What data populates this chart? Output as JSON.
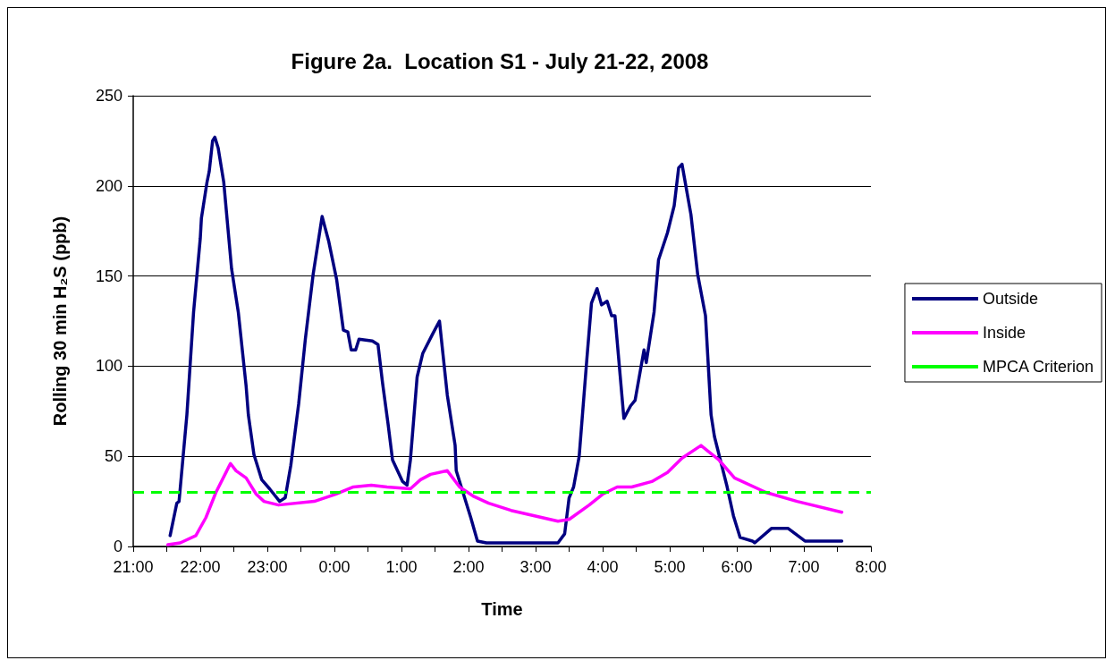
{
  "chart_data": {
    "type": "line",
    "title": "Figure 2a.  Location S1 - July 21-22, 2008",
    "xlabel": "Time",
    "ylabel": "Rolling 30 min H₂S (ppb)",
    "xlim": [
      "2008-07-21T21:00",
      "2008-07-22T08:00"
    ],
    "xticks": [
      {
        "value": "2008-07-21T21:00",
        "label": "21:00"
      },
      {
        "value": "2008-07-21T21:30",
        "label": null
      },
      {
        "value": "2008-07-21T22:00",
        "label": "22:00"
      },
      {
        "value": "2008-07-21T22:30",
        "label": null
      },
      {
        "value": "2008-07-21T23:00",
        "label": "23:00"
      },
      {
        "value": "2008-07-21T23:30",
        "label": null
      },
      {
        "value": "2008-07-22T00:00",
        "label": "0:00"
      },
      {
        "value": "2008-07-22T00:30",
        "label": null
      },
      {
        "value": "2008-07-22T01:00",
        "label": "1:00"
      },
      {
        "value": "2008-07-22T01:30",
        "label": null
      },
      {
        "value": "2008-07-22T02:00",
        "label": "2:00"
      },
      {
        "value": "2008-07-22T02:30",
        "label": null
      },
      {
        "value": "2008-07-22T03:00",
        "label": "3:00"
      },
      {
        "value": "2008-07-22T03:30",
        "label": null
      },
      {
        "value": "2008-07-22T04:00",
        "label": "4:00"
      },
      {
        "value": "2008-07-22T04:30",
        "label": null
      },
      {
        "value": "2008-07-22T05:00",
        "label": "5:00"
      },
      {
        "value": "2008-07-22T05:30",
        "label": null
      },
      {
        "value": "2008-07-22T06:00",
        "label": "6:00"
      },
      {
        "value": "2008-07-22T06:30",
        "label": null
      },
      {
        "value": "2008-07-22T07:00",
        "label": "7:00"
      },
      {
        "value": "2008-07-22T07:30",
        "label": null
      },
      {
        "value": "2008-07-22T08:00",
        "label": "8:00"
      }
    ],
    "ylim": [
      0,
      250
    ],
    "yticks": [
      0,
      50,
      100,
      150,
      200,
      250
    ],
    "grid": "y",
    "legend": "right",
    "marker": "none",
    "line_style": "solid",
    "series": [
      {
        "name": "Outside",
        "color": "#000080",
        "x": [
          "2008-07-21T21:33",
          "2008-07-21T21:39",
          "2008-07-21T21:41",
          "2008-07-21T21:48",
          "2008-07-21T21:54",
          "2008-07-21T22:00",
          "2008-07-21T22:01",
          "2008-07-21T22:06",
          "2008-07-21T22:08",
          "2008-07-21T22:11",
          "2008-07-21T22:13",
          "2008-07-21T22:16",
          "2008-07-21T22:21",
          "2008-07-21T22:28",
          "2008-07-21T22:34",
          "2008-07-21T22:41",
          "2008-07-21T22:43",
          "2008-07-21T22:48",
          "2008-07-21T22:55",
          "2008-07-21T23:02",
          "2008-07-21T23:11",
          "2008-07-21T23:16",
          "2008-07-21T23:21",
          "2008-07-21T23:28",
          "2008-07-21T23:34",
          "2008-07-21T23:41",
          "2008-07-21T23:49",
          "2008-07-21T23:55",
          "2008-07-22T00:02",
          "2008-07-22T00:08",
          "2008-07-22T00:12",
          "2008-07-22T00:15",
          "2008-07-22T00:19",
          "2008-07-22T00:22",
          "2008-07-22T00:34",
          "2008-07-22T00:39",
          "2008-07-22T00:43",
          "2008-07-22T00:48",
          "2008-07-22T00:52",
          "2008-07-22T01:01",
          "2008-07-22T01:05",
          "2008-07-22T01:08",
          "2008-07-22T01:14",
          "2008-07-22T01:19",
          "2008-07-22T01:28",
          "2008-07-22T01:34",
          "2008-07-22T01:41",
          "2008-07-22T01:48",
          "2008-07-22T01:49",
          "2008-07-22T02:02",
          "2008-07-22T02:08",
          "2008-07-22T02:16",
          "2008-07-22T03:20",
          "2008-07-22T03:26",
          "2008-07-22T03:30",
          "2008-07-22T03:34",
          "2008-07-22T03:39",
          "2008-07-22T03:46",
          "2008-07-22T03:50",
          "2008-07-22T03:55",
          "2008-07-22T03:59",
          "2008-07-22T04:04",
          "2008-07-22T04:08",
          "2008-07-22T04:11",
          "2008-07-22T04:19",
          "2008-07-22T04:25",
          "2008-07-22T04:29",
          "2008-07-22T04:37",
          "2008-07-22T04:39",
          "2008-07-22T04:46",
          "2008-07-22T04:50",
          "2008-07-22T04:58",
          "2008-07-22T05:04",
          "2008-07-22T05:08",
          "2008-07-22T05:11",
          "2008-07-22T05:19",
          "2008-07-22T05:25",
          "2008-07-22T05:32",
          "2008-07-22T05:37",
          "2008-07-22T05:40",
          "2008-07-22T05:51",
          "2008-07-22T05:57",
          "2008-07-22T06:03",
          "2008-07-22T06:14",
          "2008-07-22T06:16",
          "2008-07-22T06:31",
          "2008-07-22T06:46",
          "2008-07-22T07:01",
          "2008-07-22T07:34"
        ],
        "values": [
          6,
          24,
          25,
          73,
          130,
          171,
          182,
          202,
          208,
          225,
          227,
          221,
          202,
          154,
          130,
          89,
          73,
          51,
          37,
          32,
          25,
          27,
          45,
          79,
          115,
          151,
          183,
          169,
          148,
          120,
          119,
          109,
          109,
          115,
          114,
          112,
          91,
          68,
          48,
          36,
          34,
          48,
          94,
          107,
          118,
          125,
          84,
          56,
          42,
          16,
          3,
          2,
          2,
          7,
          27,
          33,
          50,
          105,
          135,
          143,
          134,
          136,
          128,
          128,
          71,
          78,
          81,
          109,
          102,
          130,
          159,
          174,
          189,
          210,
          212,
          184,
          151,
          128,
          73,
          61,
          34,
          17,
          5,
          3,
          2,
          10,
          10,
          3,
          3
        ]
      },
      {
        "name": "Inside",
        "color": "#ff00ff",
        "x": [
          "2008-07-21T21:31",
          "2008-07-21T21:42",
          "2008-07-21T21:56",
          "2008-07-21T22:05",
          "2008-07-21T22:14",
          "2008-07-21T22:27",
          "2008-07-21T22:32",
          "2008-07-21T22:41",
          "2008-07-21T22:50",
          "2008-07-21T22:57",
          "2008-07-21T23:10",
          "2008-07-21T23:42",
          "2008-07-22T00:01",
          "2008-07-22T00:17",
          "2008-07-22T00:33",
          "2008-07-22T00:47",
          "2008-07-22T01:08",
          "2008-07-22T01:17",
          "2008-07-22T01:26",
          "2008-07-22T01:41",
          "2008-07-22T01:52",
          "2008-07-22T02:04",
          "2008-07-22T02:18",
          "2008-07-22T02:38",
          "2008-07-22T03:20",
          "2008-07-22T03:30",
          "2008-07-22T03:48",
          "2008-07-22T04:00",
          "2008-07-22T04:13",
          "2008-07-22T04:26",
          "2008-07-22T04:44",
          "2008-07-22T04:58",
          "2008-07-22T05:11",
          "2008-07-22T05:28",
          "2008-07-22T05:44",
          "2008-07-22T05:58",
          "2008-07-22T06:26",
          "2008-07-22T06:54",
          "2008-07-22T07:34"
        ],
        "values": [
          1,
          2,
          6,
          16,
          30,
          46,
          42,
          38,
          29,
          25,
          23,
          25,
          29,
          33,
          34,
          33,
          32,
          37,
          40,
          42,
          33,
          28,
          24,
          20,
          14,
          15,
          23,
          29,
          33,
          33,
          36,
          41,
          49,
          56,
          48,
          38,
          30,
          25,
          19
        ]
      }
    ],
    "ref_lines": [
      {
        "axis": "y",
        "value": 30,
        "label": "MPCA Criterion",
        "color": "#00ff00",
        "line_style": "dashed"
      }
    ]
  }
}
